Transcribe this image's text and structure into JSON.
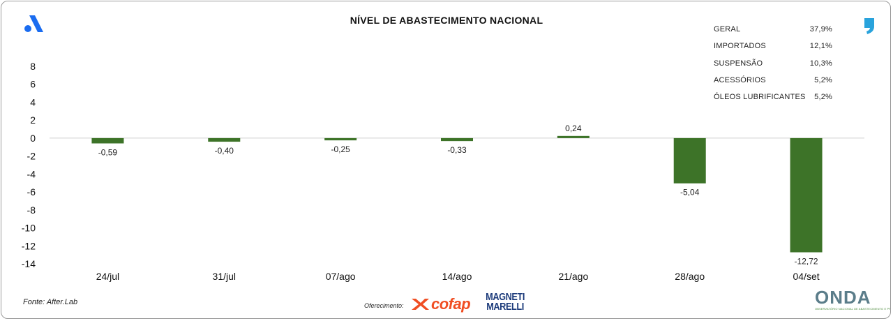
{
  "title": "NÍVEL DE ABASTECIMENTO NACIONAL",
  "stats": [
    {
      "label": "GERAL",
      "value": "37,9%"
    },
    {
      "label": "IMPORTADOS",
      "value": "12,1%"
    },
    {
      "label": "SUSPENSÃO",
      "value": "10,3%"
    },
    {
      "label": "ACESSÓRIOS",
      "value": "5,2%"
    },
    {
      "label": "ÓLEOS LUBRIFICANTES",
      "value": "5,2%"
    }
  ],
  "footer": {
    "source": "Fonte: After.Lab",
    "sponsor_label": "Oferecimento:",
    "cofap": "cofap",
    "magneti_line1": "MAGNETI",
    "magneti_line2": "MARELLI",
    "onda": "ONDA",
    "onda_sub": "OBSERVATÓRIO NACIONAL DE ABASTECIMENTO E PREÇOS"
  },
  "colors": {
    "bar": "#3d7328",
    "cofap": "#f04e23",
    "logo_blue": "#1a6cf0",
    "comma": "#29a3dc"
  },
  "chart_data": {
    "type": "bar",
    "categories": [
      "24/jul",
      "31/jul",
      "07/ago",
      "14/ago",
      "21/ago",
      "28/ago",
      "04/set"
    ],
    "values": [
      -0.59,
      -0.4,
      -0.25,
      -0.33,
      0.24,
      -5.04,
      -12.72
    ],
    "labels": [
      "-0,59",
      "-0,40",
      "-0,25",
      "-0,33",
      "0,24",
      "-5,04",
      "-12,72"
    ],
    "ylim": [
      -14,
      8
    ],
    "yticks": [
      8,
      6,
      4,
      2,
      0,
      -2,
      -4,
      -6,
      -8,
      -10,
      -12,
      -14
    ],
    "title": "NÍVEL DE ABASTECIMENTO NACIONAL",
    "xlabel": "",
    "ylabel": "",
    "grid": false,
    "legend": "none"
  }
}
